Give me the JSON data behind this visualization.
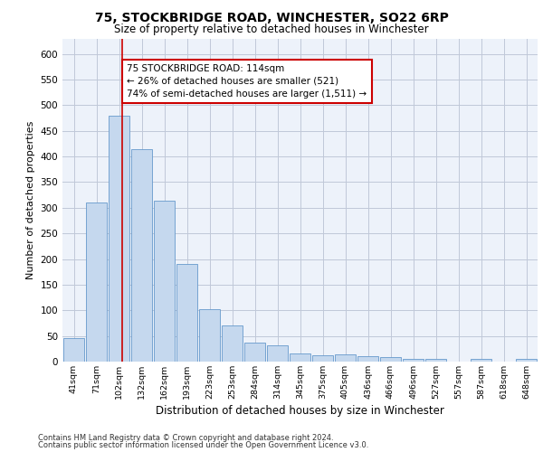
{
  "title1": "75, STOCKBRIDGE ROAD, WINCHESTER, SO22 6RP",
  "title2": "Size of property relative to detached houses in Winchester",
  "xlabel": "Distribution of detached houses by size in Winchester",
  "ylabel": "Number of detached properties",
  "categories": [
    "41sqm",
    "71sqm",
    "102sqm",
    "132sqm",
    "162sqm",
    "193sqm",
    "223sqm",
    "253sqm",
    "284sqm",
    "314sqm",
    "345sqm",
    "375sqm",
    "405sqm",
    "436sqm",
    "466sqm",
    "496sqm",
    "527sqm",
    "557sqm",
    "587sqm",
    "618sqm",
    "648sqm"
  ],
  "values": [
    46,
    311,
    480,
    415,
    313,
    190,
    103,
    70,
    37,
    31,
    15,
    12,
    14,
    10,
    8,
    5,
    5,
    0,
    5,
    0,
    5
  ],
  "bar_color": "#c5d8ee",
  "bar_edge_color": "#6699cc",
  "vline_x": 2.15,
  "vline_color": "#cc0000",
  "annotation_text": "75 STOCKBRIDGE ROAD: 114sqm\n← 26% of detached houses are smaller (521)\n74% of semi-detached houses are larger (1,511) →",
  "annotation_box_color": "#ffffff",
  "annotation_box_edge": "#cc0000",
  "footer1": "Contains HM Land Registry data © Crown copyright and database right 2024.",
  "footer2": "Contains public sector information licensed under the Open Government Licence v3.0.",
  "ylim": [
    0,
    630
  ],
  "plot_bg_color": "#edf2fa",
  "grid_color": "#c0c8d8"
}
